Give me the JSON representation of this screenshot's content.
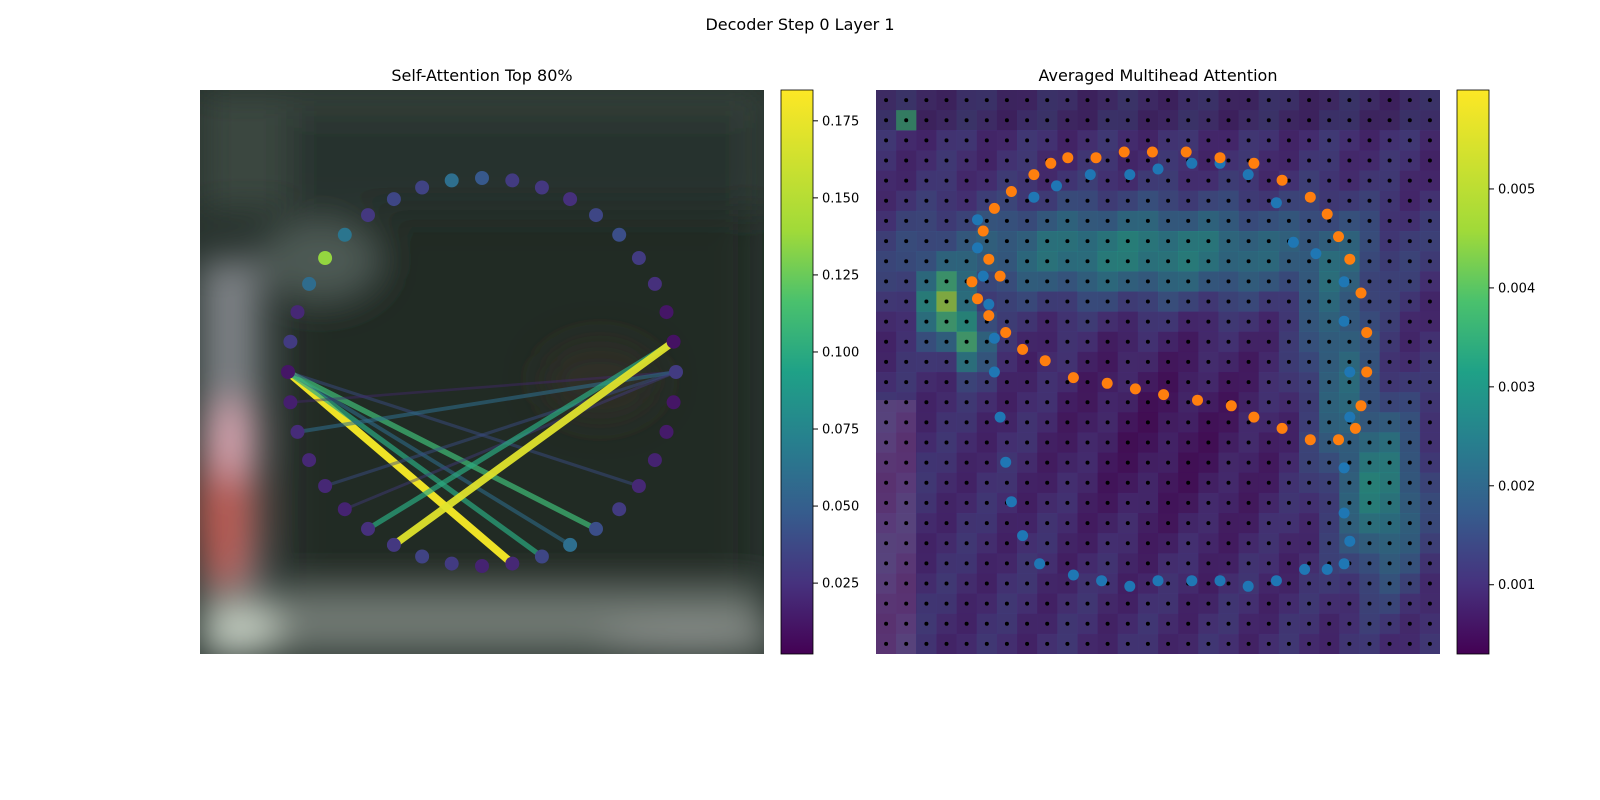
{
  "figure": {
    "title": "Decoder Step 0 Layer 1"
  },
  "colors": {
    "scheme": "viridis",
    "series_blue": "#1f77b4",
    "series_orange": "#ff7f0e",
    "grid_dot": "#000000"
  },
  "chart_data": [
    {
      "type": "network",
      "title": "Self-Attention Top 80%",
      "background": "blurred image",
      "num_nodes": 40,
      "node_values": [
        0.012,
        0.016,
        0.022,
        0.02,
        0.02,
        0.018,
        0.024,
        0.028,
        0.034,
        0.03,
        0.018,
        0.02,
        0.036,
        0.06,
        0.04,
        0.03,
        0.02,
        0.018,
        0.014,
        0.012,
        0.03,
        0.01,
        0.012,
        0.024,
        0.03,
        0.04,
        0.036,
        0.024,
        0.028,
        0.03,
        0.046,
        0.06,
        0.034,
        0.036,
        0.028,
        0.064,
        0.136,
        0.058,
        0.02,
        0.03
      ],
      "edges": [
        {
          "from": 0,
          "to": 11,
          "value": 0.18
        },
        {
          "from": 0,
          "to": 12,
          "value": 0.1
        },
        {
          "from": 0,
          "to": 13,
          "value": 0.06
        },
        {
          "from": 0,
          "to": 14,
          "value": 0.11
        },
        {
          "from": 0,
          "to": 16,
          "value": 0.04
        },
        {
          "from": 1,
          "to": 20,
          "value": 0.02
        },
        {
          "from": 2,
          "to": 20,
          "value": 0.06
        },
        {
          "from": 4,
          "to": 20,
          "value": 0.04
        },
        {
          "from": 5,
          "to": 20,
          "value": 0.03
        },
        {
          "from": 6,
          "to": 21,
          "value": 0.1
        },
        {
          "from": 7,
          "to": 21,
          "value": 0.17
        }
      ],
      "colorbar": {
        "min": 0.002,
        "max": 0.185,
        "ticks": [
          0.025,
          0.05,
          0.075,
          0.1,
          0.125,
          0.15,
          0.175
        ],
        "tick_labels": [
          "0.025",
          "0.050",
          "0.075",
          "0.100",
          "0.125",
          "0.150",
          "0.175"
        ]
      }
    },
    {
      "type": "heatmap",
      "title": "Averaged Multihead Attention",
      "grid": [
        28,
        28
      ],
      "description_values": "attention averaged over heads, overlaid on image with two point series",
      "series": [
        {
          "color": "blue",
          "points": [
            [
              0.28,
              0.31
            ],
            [
              0.32,
              0.29
            ],
            [
              0.38,
              0.27
            ],
            [
              0.45,
              0.27
            ],
            [
              0.5,
              0.26
            ],
            [
              0.56,
              0.25
            ],
            [
              0.61,
              0.25
            ],
            [
              0.66,
              0.27
            ],
            [
              0.71,
              0.32
            ],
            [
              0.74,
              0.39
            ],
            [
              0.78,
              0.41
            ],
            [
              0.83,
              0.46
            ],
            [
              0.83,
              0.53
            ],
            [
              0.84,
              0.62
            ],
            [
              0.84,
              0.7
            ],
            [
              0.83,
              0.79
            ],
            [
              0.83,
              0.87
            ],
            [
              0.84,
              0.92
            ],
            [
              0.83,
              0.96
            ],
            [
              0.8,
              0.97
            ],
            [
              0.76,
              0.97
            ],
            [
              0.71,
              0.99
            ],
            [
              0.66,
              1.0
            ],
            [
              0.61,
              0.99
            ],
            [
              0.56,
              0.99
            ],
            [
              0.5,
              0.99
            ],
            [
              0.45,
              1.0
            ],
            [
              0.4,
              0.99
            ],
            [
              0.35,
              0.98
            ],
            [
              0.29,
              0.96
            ],
            [
              0.26,
              0.91
            ],
            [
              0.24,
              0.85
            ],
            [
              0.23,
              0.78
            ],
            [
              0.22,
              0.7
            ],
            [
              0.21,
              0.62
            ],
            [
              0.21,
              0.56
            ],
            [
              0.2,
              0.5
            ],
            [
              0.19,
              0.45
            ],
            [
              0.18,
              0.4
            ],
            [
              0.18,
              0.35
            ]
          ]
        },
        {
          "color": "orange",
          "points": [
            [
              0.22,
              0.45
            ],
            [
              0.2,
              0.42
            ],
            [
              0.19,
              0.37
            ],
            [
              0.21,
              0.33
            ],
            [
              0.24,
              0.3
            ],
            [
              0.28,
              0.27
            ],
            [
              0.31,
              0.25
            ],
            [
              0.34,
              0.24
            ],
            [
              0.39,
              0.24
            ],
            [
              0.44,
              0.23
            ],
            [
              0.49,
              0.23
            ],
            [
              0.55,
              0.23
            ],
            [
              0.61,
              0.24
            ],
            [
              0.67,
              0.25
            ],
            [
              0.72,
              0.28
            ],
            [
              0.77,
              0.31
            ],
            [
              0.8,
              0.34
            ],
            [
              0.82,
              0.38
            ],
            [
              0.84,
              0.42
            ],
            [
              0.86,
              0.48
            ],
            [
              0.87,
              0.55
            ],
            [
              0.87,
              0.62
            ],
            [
              0.86,
              0.68
            ],
            [
              0.85,
              0.72
            ],
            [
              0.82,
              0.74
            ],
            [
              0.77,
              0.74
            ],
            [
              0.72,
              0.72
            ],
            [
              0.67,
              0.7
            ],
            [
              0.63,
              0.68
            ],
            [
              0.57,
              0.67
            ],
            [
              0.51,
              0.66
            ],
            [
              0.46,
              0.65
            ],
            [
              0.41,
              0.64
            ],
            [
              0.35,
              0.63
            ],
            [
              0.3,
              0.6
            ],
            [
              0.26,
              0.58
            ],
            [
              0.23,
              0.55
            ],
            [
              0.2,
              0.52
            ],
            [
              0.18,
              0.49
            ],
            [
              0.17,
              0.46
            ]
          ]
        }
      ],
      "colorbar": {
        "min": 0.0003,
        "max": 0.006,
        "ticks": [
          0.001,
          0.002,
          0.003,
          0.004,
          0.005
        ],
        "tick_labels": [
          "0.001",
          "0.002",
          "0.003",
          "0.004",
          "0.005"
        ]
      }
    }
  ]
}
